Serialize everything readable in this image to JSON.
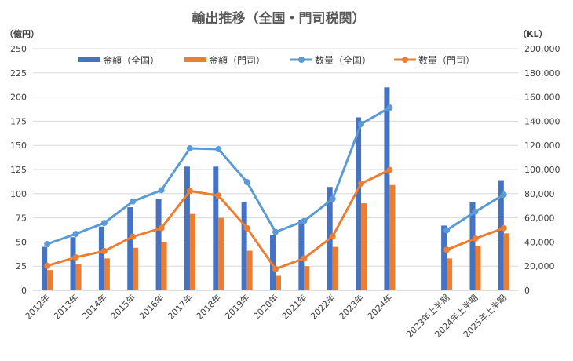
{
  "chart_data": {
    "type": "bar+line",
    "title": "輸出推移（全国・門司税関）",
    "ylabel_left": "（億円）",
    "ylabel_right": "（KL）",
    "ylim_left": [
      0,
      250
    ],
    "ylim_right": [
      0,
      200000
    ],
    "yticks_left": [
      "0",
      "25",
      "50",
      "75",
      "100",
      "125",
      "150",
      "175",
      "200",
      "225",
      "250"
    ],
    "yticks_right": [
      "0",
      "20,000",
      "40,000",
      "60,000",
      "80,000",
      "100,000",
      "120,000",
      "140,000",
      "160,000",
      "180,000",
      "200,000"
    ],
    "grid": true,
    "legend_position": "top",
    "categories": [
      "2012年",
      "2013年",
      "2014年",
      "2015年",
      "2016年",
      "2017年",
      "2018年",
      "2019年",
      "2020年",
      "2021年",
      "2022年",
      "2023年",
      "2024年",
      "",
      "2023年上半期",
      "2024年上半期",
      "2025年上半期"
    ],
    "series": [
      {
        "name": "金額（全国）",
        "kind": "bar",
        "axis": "left",
        "color": "#4472C4",
        "values": [
          45,
          55,
          66,
          86,
          95,
          128,
          128,
          91,
          57,
          73,
          107,
          179,
          210,
          null,
          67,
          91,
          114
        ]
      },
      {
        "name": "金額（門司）",
        "kind": "bar",
        "axis": "left",
        "color": "#ED7D31",
        "values": [
          21,
          27,
          33,
          44,
          50,
          79,
          75,
          41,
          15,
          25,
          45,
          90,
          109,
          null,
          33,
          46,
          59
        ]
      },
      {
        "name": "数量（全国）",
        "kind": "line",
        "axis": "right",
        "color": "#5B9BD5",
        "values": [
          38300,
          46700,
          55800,
          73600,
          82900,
          117500,
          116900,
          89600,
          48300,
          57300,
          75700,
          137700,
          151200,
          null,
          49800,
          65100,
          79200
        ]
      },
      {
        "name": "数量（門司）",
        "kind": "line",
        "axis": "right",
        "color": "#ED7D31",
        "values": [
          20300,
          27300,
          32500,
          44400,
          51500,
          82200,
          78400,
          51500,
          17700,
          26400,
          44600,
          88400,
          99700,
          null,
          33600,
          42900,
          51500
        ]
      }
    ]
  }
}
